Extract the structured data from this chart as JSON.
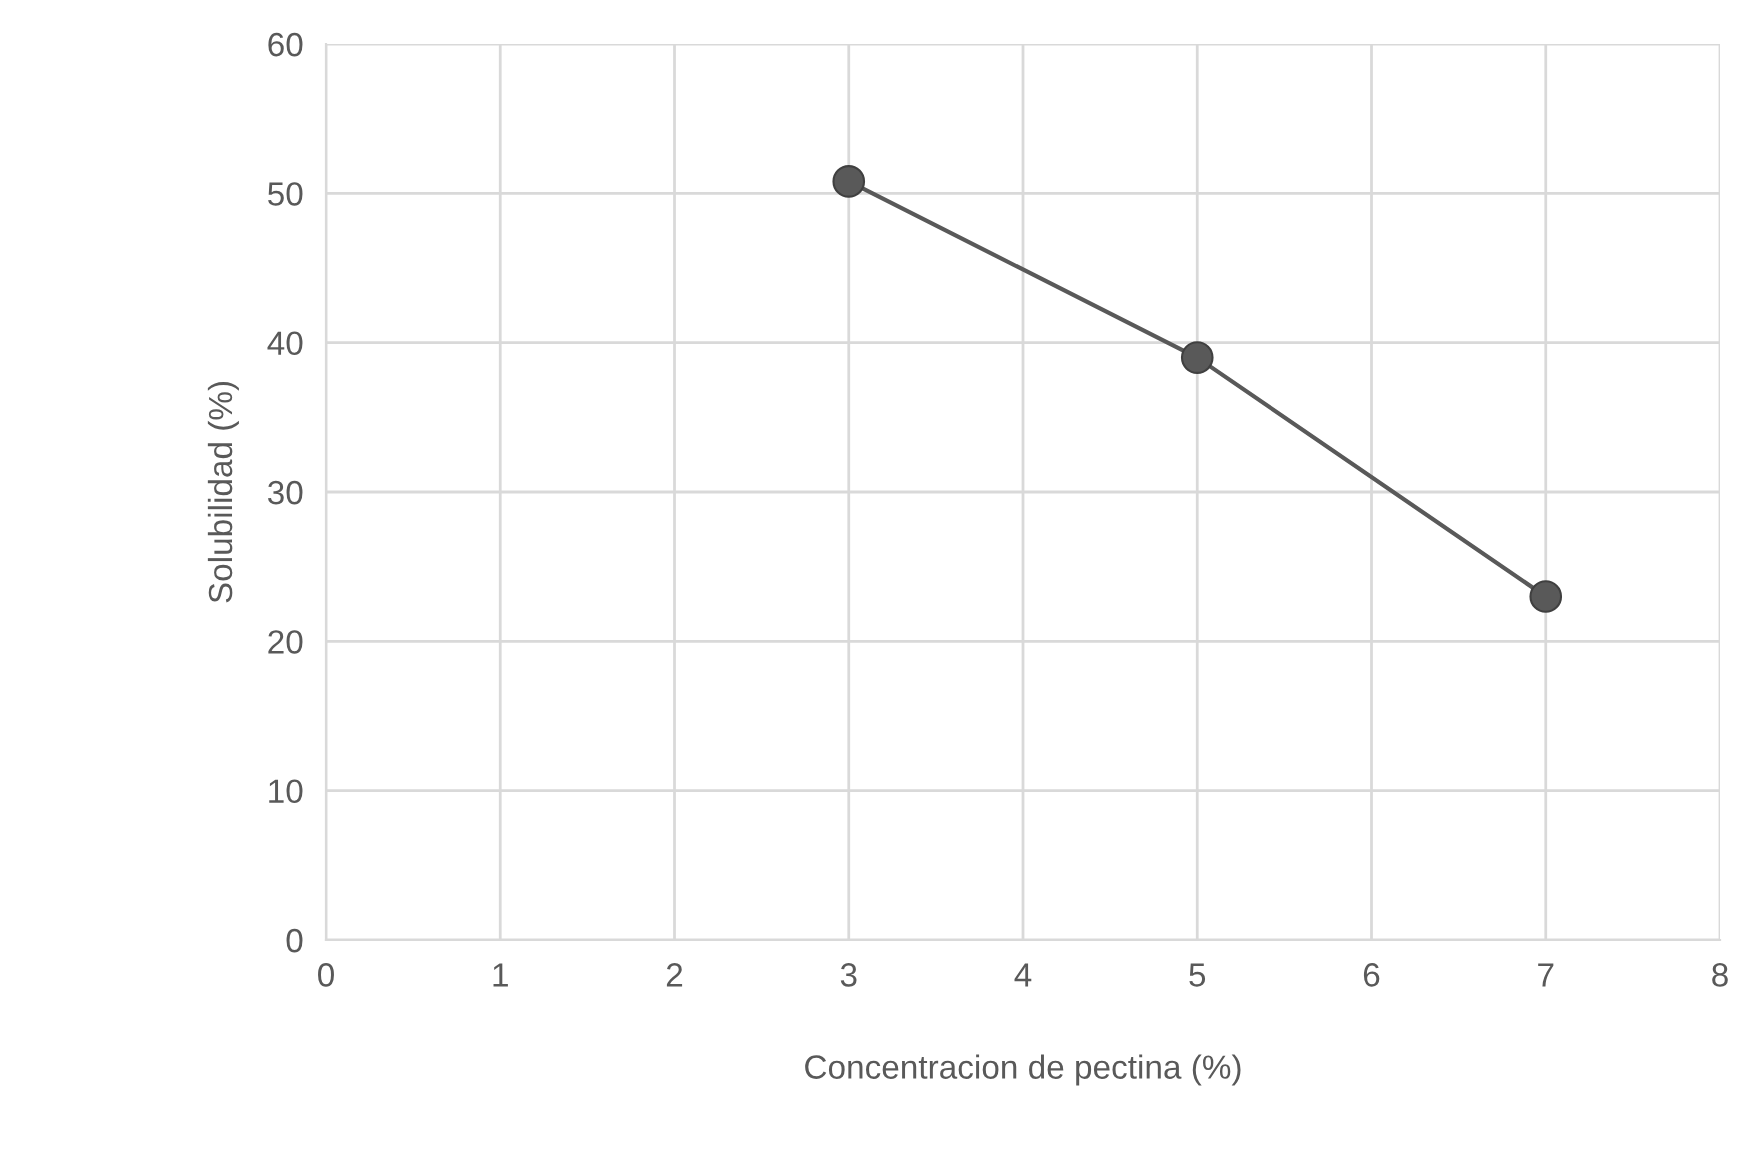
{
  "chart_data": {
    "type": "line",
    "xlabel": "Concentracion de pectina (%)",
    "ylabel": "Solubilidad (%)",
    "x": [
      3,
      5,
      7
    ],
    "series": [
      {
        "color": "#595959",
        "values": [
          50.8,
          39,
          23
        ]
      }
    ],
    "xlim": [
      0,
      8
    ],
    "xticks": [
      0,
      1,
      2,
      3,
      4,
      5,
      6,
      7,
      8
    ],
    "ylim": [
      0,
      60
    ],
    "yticks": [
      0,
      10,
      20,
      30,
      40,
      50,
      60
    ],
    "grid": true,
    "marker": "circle",
    "line_style": "solid"
  }
}
